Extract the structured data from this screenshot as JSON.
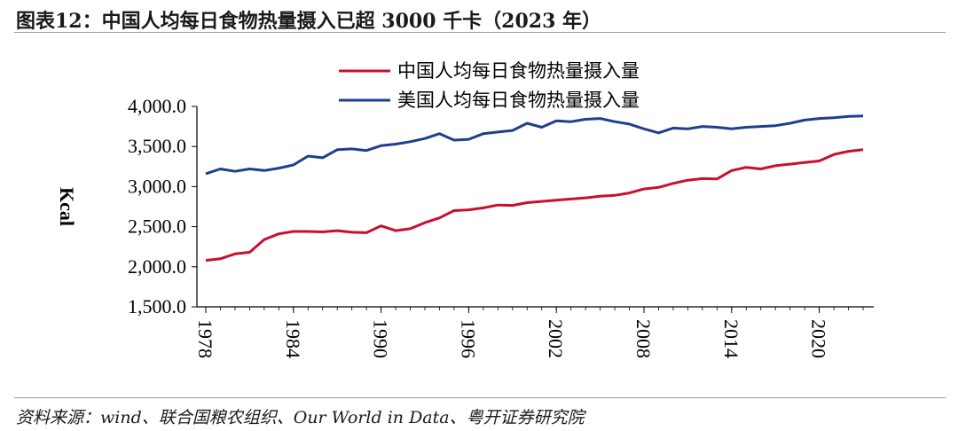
{
  "header": {
    "title": "图表12：中国人均每日食物热量摄入已超 3000 千卡（2023 年）"
  },
  "footer": {
    "source": "资料来源：wind、联合国粮农组织、Our World in Data、粤开证券研究院"
  },
  "chart_data": {
    "type": "line",
    "ylabel": "Kcal",
    "ylim": [
      1500,
      4000
    ],
    "yticks": [
      "1,500.0",
      "2,000.0",
      "2,500.0",
      "3,000.0",
      "3,500.0",
      "4,000.0"
    ],
    "ytick_values": [
      1500,
      2000,
      2500,
      3000,
      3500,
      4000
    ],
    "xticks": [
      "1978",
      "1984",
      "1990",
      "1996",
      "2002",
      "2008",
      "2014",
      "2020"
    ],
    "xtick_values": [
      1978,
      1984,
      1990,
      1996,
      2002,
      2008,
      2014,
      2020
    ],
    "x": [
      1978,
      1979,
      1980,
      1981,
      1982,
      1983,
      1984,
      1985,
      1986,
      1987,
      1988,
      1989,
      1990,
      1991,
      1992,
      1993,
      1994,
      1995,
      1996,
      1997,
      1998,
      1999,
      2000,
      2001,
      2002,
      2003,
      2004,
      2005,
      2006,
      2007,
      2008,
      2009,
      2010,
      2011,
      2012,
      2013,
      2014,
      2015,
      2016,
      2017,
      2018,
      2019,
      2020,
      2021,
      2022,
      2023
    ],
    "legend_position": "top-right",
    "grid": false,
    "series": [
      {
        "name": "中国人均每日食物热量摄入量",
        "color": "#c8102e",
        "values": [
          2080,
          2100,
          2160,
          2180,
          2340,
          2410,
          2440,
          2440,
          2435,
          2450,
          2430,
          2425,
          2510,
          2450,
          2475,
          2550,
          2610,
          2700,
          2710,
          2735,
          2770,
          2765,
          2800,
          2815,
          2830,
          2845,
          2860,
          2880,
          2890,
          2920,
          2970,
          2990,
          3040,
          3080,
          3100,
          3095,
          3200,
          3240,
          3220,
          3260,
          3280,
          3300,
          3320,
          3400,
          3440,
          3460
        ]
      },
      {
        "name": "美国人均每日食物热量摄入量",
        "color": "#1f3f8a",
        "values": [
          3160,
          3220,
          3190,
          3220,
          3200,
          3230,
          3270,
          3380,
          3360,
          3460,
          3470,
          3450,
          3510,
          3530,
          3560,
          3600,
          3660,
          3580,
          3590,
          3660,
          3680,
          3700,
          3790,
          3740,
          3820,
          3810,
          3840,
          3850,
          3810,
          3780,
          3720,
          3670,
          3730,
          3720,
          3750,
          3740,
          3720,
          3740,
          3750,
          3760,
          3790,
          3830,
          3850,
          3860,
          3875,
          3880
        ]
      }
    ]
  }
}
